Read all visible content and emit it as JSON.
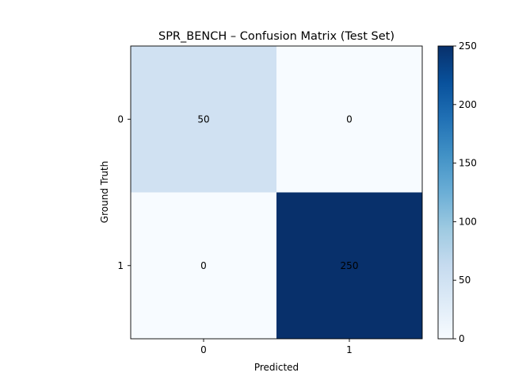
{
  "chart_data": {
    "type": "heatmap",
    "title": "SPR_BENCH – Confusion Matrix (Test Set)",
    "xlabel": "Predicted",
    "ylabel": "Ground Truth",
    "x_categories": [
      "0",
      "1"
    ],
    "y_categories": [
      "0",
      "1"
    ],
    "matrix": [
      [
        50,
        0
      ],
      [
        0,
        250
      ]
    ],
    "cell_labels": [
      [
        "50",
        "0"
      ],
      [
        "0",
        "250"
      ]
    ],
    "colormap": "Blues",
    "colorbar": {
      "range": [
        0,
        250
      ],
      "ticks": [
        0,
        50,
        100,
        150,
        200,
        250
      ],
      "tick_labels": [
        "0",
        "50",
        "100",
        "150",
        "200",
        "250"
      ]
    },
    "colors": {
      "low": "#f7fbff",
      "cell_50": "#d0e1f2",
      "high": "#08306b"
    },
    "grid": false
  }
}
